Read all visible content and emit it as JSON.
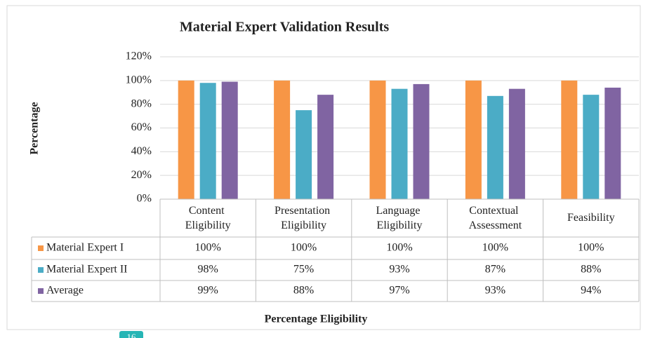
{
  "chart_data": {
    "type": "bar",
    "title": "Material Expert Validation Results",
    "ylabel": "Percentage",
    "xlabel": "Percentage Eligibility",
    "categories": [
      "Content Eligibility",
      "Presentation Eligibility",
      "Language Eligibility",
      "Contextual Assessment",
      "Feasibility"
    ],
    "series": [
      {
        "name": "Material Expert I",
        "color": "#f79646",
        "values": [
          100,
          100,
          100,
          100,
          100
        ],
        "value_labels": [
          "100%",
          "100%",
          "100%",
          "100%",
          "100%"
        ]
      },
      {
        "name": "Material Expert II",
        "color": "#4bacc6",
        "values": [
          98,
          75,
          93,
          87,
          88
        ],
        "value_labels": [
          "98%",
          "75%",
          "93%",
          "87%",
          "88%"
        ]
      },
      {
        "name": "Average",
        "color": "#8064a2",
        "values": [
          99,
          88,
          97,
          93,
          94
        ],
        "value_labels": [
          "99%",
          "88%",
          "97%",
          "93%",
          "94%"
        ]
      }
    ],
    "ylim": [
      0,
      120
    ],
    "yticks": [
      {
        "value": 0,
        "label": "0%"
      },
      {
        "value": 20,
        "label": "20%"
      },
      {
        "value": 40,
        "label": "40%"
      },
      {
        "value": 60,
        "label": "60%"
      },
      {
        "value": 80,
        "label": "80%"
      },
      {
        "value": 100,
        "label": "100%"
      },
      {
        "value": 120,
        "label": "120%"
      }
    ],
    "grid": true
  },
  "page_badge": "16"
}
